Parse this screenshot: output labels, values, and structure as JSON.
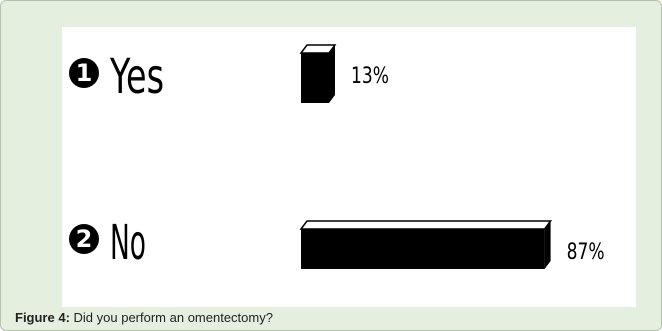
{
  "chart_data": {
    "type": "bar",
    "orientation": "horizontal",
    "categories": [
      "Yes",
      "No"
    ],
    "numbers": [
      "1",
      "2"
    ],
    "values": [
      13,
      87
    ],
    "value_labels": [
      "13%",
      "87%"
    ],
    "unit": "%",
    "title": "",
    "xlabel": "",
    "ylabel": "",
    "xlim": [
      0,
      100
    ],
    "grid": false,
    "legend": "none",
    "bar_color": "#000000"
  },
  "caption": {
    "label": "Figure 4:",
    "text": "Did you perform an omentectomy?"
  }
}
